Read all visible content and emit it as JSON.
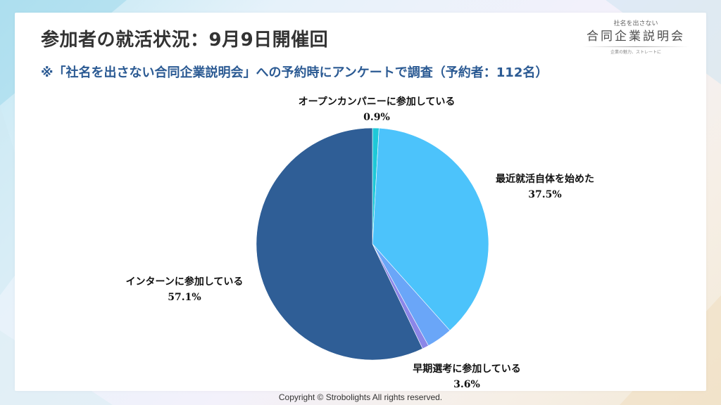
{
  "header": {
    "title": "参加者の就活状況：9月9日開催回",
    "subtitle": "※「社名を出さない合同企業説明会」への予約時にアンケートで調査（予約者：112名）"
  },
  "logo": {
    "top_text": "社名を出さない",
    "main_text": "合同企業説明会",
    "tagline": "企業の魅力、ストレートに"
  },
  "footer": {
    "copyright": "Copyright © Strobolights All rights reserved."
  },
  "colors": {
    "title": "#333333",
    "subtitle": "#2b5a93"
  },
  "chart_data": {
    "type": "pie",
    "title": "",
    "start": "top",
    "direction": "clockwise",
    "slices": [
      {
        "label": "オープンカンパニーに参加している",
        "value": 0.9,
        "display": "0.9%",
        "color": "#1ec8d8",
        "label_position": "top"
      },
      {
        "label": "最近就活自体を始めた",
        "value": 37.5,
        "display": "37.5%",
        "color": "#4cc3fb",
        "label_position": "right"
      },
      {
        "label": "早期選考に参加している",
        "value": 3.6,
        "display": "3.6%",
        "color": "#6aa6f8",
        "label_position": "bottom-right"
      },
      {
        "label": "",
        "value": 0.9,
        "display": "",
        "color": "#8b86e8",
        "label_position": "none"
      },
      {
        "label": "インターンに参加している",
        "value": 57.1,
        "display": "57.1%",
        "color": "#2f5e96",
        "label_position": "left"
      }
    ]
  }
}
